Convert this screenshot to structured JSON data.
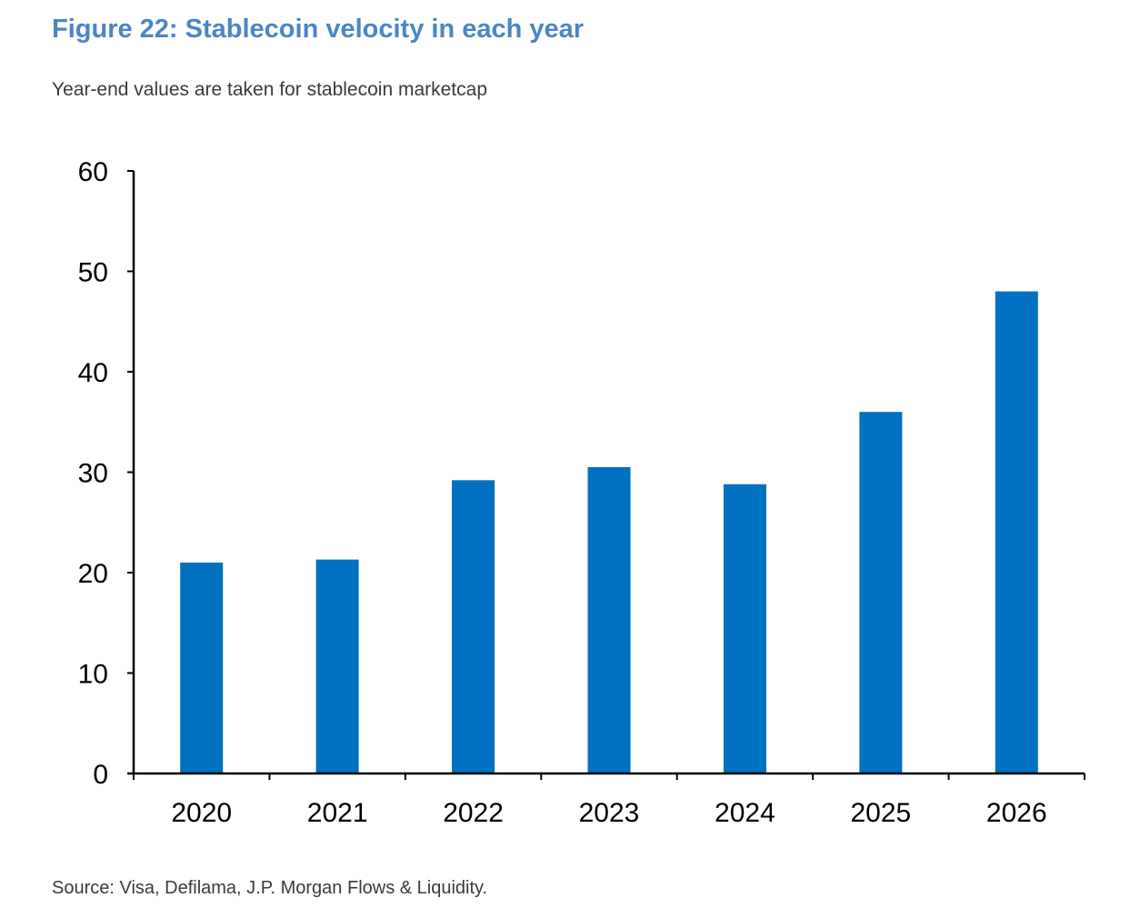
{
  "figure": {
    "title": "Figure 22: Stablecoin velocity in each year",
    "subtitle": "Year-end values are taken for stablecoin marketcap",
    "source": "Source: Visa, Defilama, J.P. Morgan Flows & Liquidity."
  },
  "colors": {
    "title": "#4a86c5",
    "bar": "#0070c0",
    "axis": "#000000",
    "text": "#3a3a3a"
  },
  "chart_data": {
    "type": "bar",
    "title": "",
    "xlabel": "",
    "ylabel": "",
    "categories": [
      "2020",
      "2021",
      "2022",
      "2023",
      "2024",
      "2025",
      "2026"
    ],
    "values": [
      21.0,
      21.3,
      29.2,
      30.5,
      28.8,
      36.0,
      48.0
    ],
    "ylim": [
      0,
      60
    ],
    "yticks": [
      0,
      10,
      20,
      30,
      40,
      50,
      60
    ],
    "grid": false,
    "legend": "none"
  }
}
